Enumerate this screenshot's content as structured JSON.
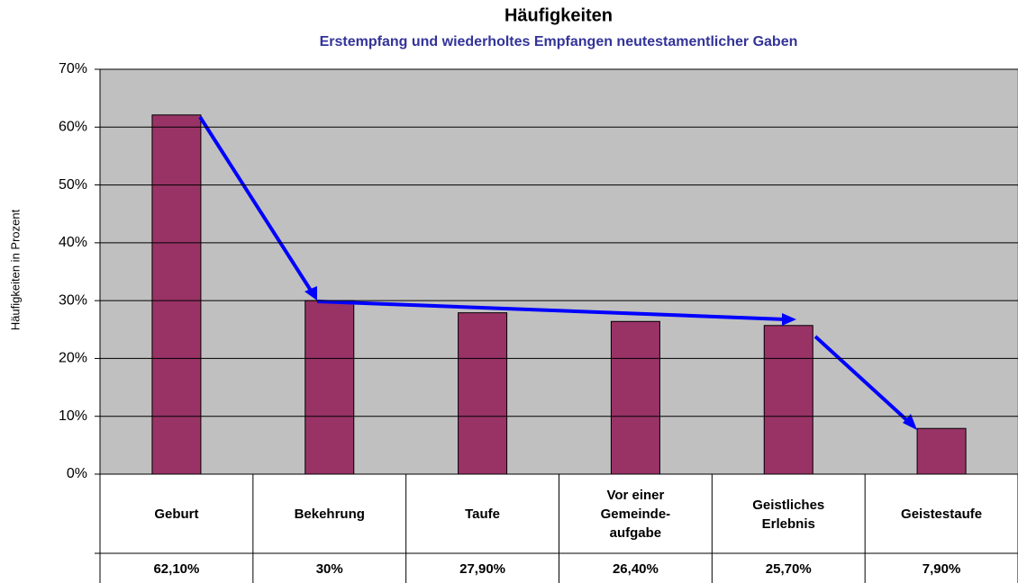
{
  "chart_data": {
    "type": "bar",
    "title": "Häufigkeiten",
    "subtitle": "Erstempfang und wiederholtes Empfangen neutestamentlicher Gaben",
    "y_label": "Häufigkeiten in Prozent",
    "categories": [
      "Geburt",
      "Bekehrung",
      "Taufe",
      "Vor einer Gemeinde-aufgabe",
      "Geistliches Erlebnis",
      "Geistestaufe"
    ],
    "values": [
      62.1,
      30,
      27.9,
      26.4,
      25.7,
      7.9
    ],
    "value_labels": [
      "62,10%",
      "30%",
      "27,90%",
      "26,40%",
      "25,70%",
      "7,90%"
    ],
    "color": "#993366",
    "ylim": [
      0,
      70
    ],
    "yticks": [
      {
        "value": 0,
        "label": "0%"
      },
      {
        "value": 10,
        "label": "10%"
      },
      {
        "value": 20,
        "label": "20%"
      },
      {
        "value": 30,
        "label": "30%"
      },
      {
        "value": 40,
        "label": "40%"
      },
      {
        "value": 50,
        "label": "50%"
      },
      {
        "value": 60,
        "label": "60%"
      },
      {
        "value": 70,
        "label": "70%"
      }
    ],
    "grid": true
  }
}
